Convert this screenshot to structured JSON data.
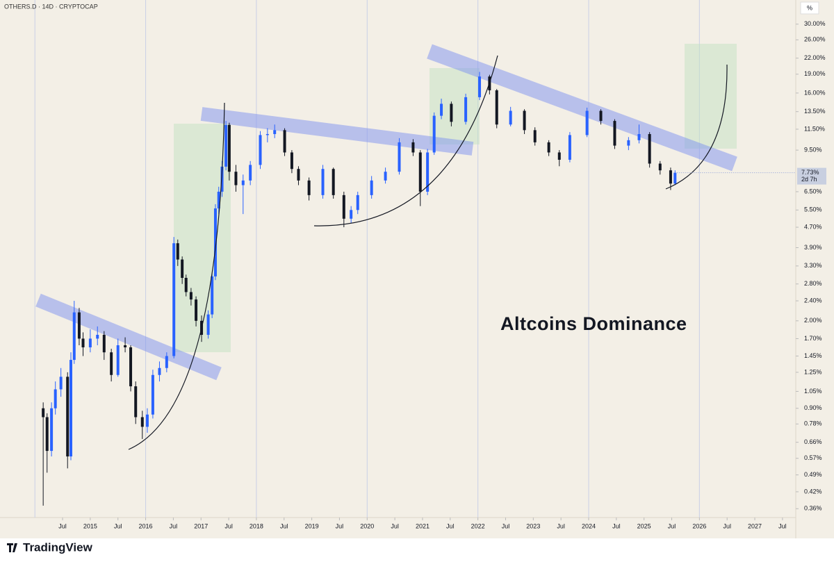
{
  "chart_data": {
    "type": "candlestick",
    "symbol": "OTHERS.D · 14D · CRYPTOCAP",
    "axis_unit": "%",
    "annotation": "Altcoins Dominance",
    "brand": "TradingView",
    "log_scale": true,
    "up_color": "#2962ff",
    "down_color": "#131722",
    "x": [
      2014.15,
      2014.22,
      2014.3,
      2014.37,
      2014.47,
      2014.59,
      2014.65,
      2014.71,
      2014.8,
      2014.87,
      2015.0,
      2015.13,
      2015.25,
      2015.38,
      2015.5,
      2015.63,
      2015.73,
      2015.82,
      2015.94,
      2016.03,
      2016.13,
      2016.25,
      2016.38,
      2016.51,
      2016.58,
      2016.66,
      2016.73,
      2016.82,
      2016.91,
      2017.01,
      2017.13,
      2017.2,
      2017.26,
      2017.32,
      2017.38,
      2017.45,
      2017.51,
      2017.63,
      2017.76,
      2017.89,
      2018.07,
      2018.2,
      2018.33,
      2018.51,
      2018.64,
      2018.76,
      2018.95,
      2019.2,
      2019.39,
      2019.58,
      2019.71,
      2019.83,
      2020.08,
      2020.33,
      2020.58,
      2020.83,
      2020.96,
      2021.09,
      2021.21,
      2021.34,
      2021.52,
      2021.78,
      2022.03,
      2022.21,
      2022.34,
      2022.59,
      2022.84,
      2023.03,
      2023.28,
      2023.47,
      2023.66,
      2023.97,
      2024.22,
      2024.47,
      2024.72,
      2024.91,
      2025.1,
      2025.29,
      2025.48,
      2025.56
    ],
    "open": [
      0.9,
      0.83,
      0.61,
      0.9,
      1.07,
      1.2,
      0.58,
      1.4,
      2.16,
      1.7,
      1.57,
      1.7,
      1.76,
      1.5,
      1.22,
      1.6,
      1.57,
      1.1,
      0.83,
      0.76,
      0.85,
      1.22,
      1.3,
      1.45,
      4.06,
      3.5,
      2.96,
      2.6,
      2.43,
      2.0,
      1.76,
      2.12,
      3.0,
      5.58,
      6.5,
      8.17,
      11.96,
      7.8,
      6.9,
      7.2,
      8.3,
      10.9,
      11.0,
      11.4,
      9.3,
      8.0,
      7.2,
      6.3,
      8.0,
      6.3,
      5.08,
      5.5,
      6.3,
      7.2,
      7.8,
      10.2,
      9.3,
      6.5,
      9.3,
      13.0,
      14.5,
      12.3,
      15.4,
      18.6,
      16.4,
      12.0,
      13.6,
      11.4,
      10.2,
      9.3,
      8.7,
      10.9,
      13.6,
      12.4,
      9.9,
      10.4,
      11.0,
      8.4,
      7.9,
      7.0
    ],
    "high": [
      0.95,
      0.86,
      0.95,
      1.15,
      1.3,
      1.25,
      1.5,
      2.4,
      2.25,
      1.8,
      1.85,
      1.9,
      1.82,
      1.55,
      1.7,
      1.72,
      1.6,
      1.15,
      0.88,
      0.9,
      1.28,
      1.38,
      1.5,
      4.3,
      4.2,
      3.6,
      3.05,
      2.7,
      2.5,
      2.1,
      2.2,
      3.1,
      5.8,
      6.8,
      8.6,
      12.4,
      12.2,
      8.3,
      7.6,
      8.6,
      11.3,
      11.6,
      12.0,
      11.6,
      9.5,
      8.2,
      7.4,
      8.3,
      8.1,
      6.5,
      5.7,
      6.5,
      7.5,
      8.1,
      10.6,
      10.5,
      9.5,
      9.6,
      13.4,
      15.2,
      14.8,
      15.9,
      19.4,
      18.9,
      16.6,
      14.1,
      13.8,
      11.7,
      10.4,
      9.5,
      11.2,
      14.0,
      13.8,
      12.6,
      10.7,
      12.0,
      11.2,
      8.6,
      8.1,
      7.9
    ],
    "low": [
      0.37,
      0.5,
      0.58,
      0.85,
      1.0,
      0.52,
      0.56,
      1.35,
      1.6,
      1.45,
      1.5,
      1.6,
      1.4,
      1.15,
      1.2,
      1.5,
      1.05,
      0.78,
      0.68,
      0.72,
      0.82,
      1.15,
      1.25,
      1.42,
      3.3,
      2.8,
      2.5,
      2.3,
      1.9,
      1.65,
      1.7,
      2.05,
      2.9,
      5.3,
      6.2,
      7.9,
      7.2,
      6.5,
      5.3,
      6.9,
      8.0,
      10.2,
      10.6,
      9.0,
      7.7,
      6.9,
      6.0,
      6.1,
      6.1,
      4.7,
      4.9,
      5.3,
      6.1,
      7.0,
      7.6,
      9.0,
      5.7,
      6.3,
      9.1,
      12.6,
      11.8,
      12.0,
      15.0,
      15.8,
      11.6,
      11.8,
      11.0,
      9.9,
      9.0,
      8.2,
      8.5,
      10.7,
      12.0,
      9.6,
      9.5,
      10.1,
      8.1,
      7.6,
      6.6,
      6.9
    ],
    "close": [
      0.83,
      0.61,
      0.9,
      1.07,
      1.2,
      0.58,
      1.4,
      2.16,
      1.7,
      1.57,
      1.7,
      1.76,
      1.5,
      1.22,
      1.6,
      1.57,
      1.1,
      0.83,
      0.76,
      0.85,
      1.22,
      1.3,
      1.45,
      4.06,
      3.5,
      2.96,
      2.6,
      2.43,
      2.0,
      1.76,
      2.12,
      3.0,
      5.58,
      6.5,
      8.17,
      11.96,
      7.8,
      6.9,
      7.2,
      8.3,
      10.9,
      11.0,
      11.4,
      9.3,
      8.0,
      7.2,
      6.3,
      8.0,
      6.3,
      5.08,
      5.5,
      6.3,
      7.2,
      7.8,
      10.2,
      9.3,
      6.5,
      9.3,
      13.0,
      14.5,
      12.3,
      15.4,
      18.6,
      16.4,
      12.0,
      13.6,
      11.4,
      10.2,
      9.3,
      8.7,
      10.9,
      13.6,
      12.4,
      9.9,
      10.4,
      11.0,
      8.4,
      7.9,
      7.0,
      7.73
    ],
    "last_price": {
      "value": 7.73,
      "label": "7.73%"
    },
    "countdown": "2d 7h",
    "xlim": [
      2013.37,
      2027.74
    ],
    "ylim": [
      0.332,
      37.4
    ],
    "x_grid": [
      2014,
      2016,
      2018,
      2020,
      2022,
      2024,
      2026
    ],
    "xticks": [
      {
        "value": 2014.5,
        "label": "Jul"
      },
      2015,
      {
        "value": 2015.5,
        "label": "Jul"
      },
      2016,
      {
        "value": 2016.5,
        "label": "Jul"
      },
      2017,
      {
        "value": 2017.5,
        "label": "Jul"
      },
      2018,
      {
        "value": 2018.5,
        "label": "Jul"
      },
      2019,
      {
        "value": 2019.5,
        "label": "Jul"
      },
      2020,
      {
        "value": 2020.5,
        "label": "Jul"
      },
      2021,
      {
        "value": 2021.5,
        "label": "Jul"
      },
      2022,
      {
        "value": 2022.5,
        "label": "Jul"
      },
      2023,
      {
        "value": 2023.5,
        "label": "Jul"
      },
      2024,
      {
        "value": 2024.5,
        "label": "Jul"
      },
      2025,
      {
        "value": 2025.5,
        "label": "Jul"
      },
      2026,
      {
        "value": 2026.5,
        "label": "Jul"
      },
      2027,
      {
        "value": 2027.5,
        "label": "Jul"
      }
    ],
    "yticks": [
      {
        "value": 30,
        "label": "30.00%"
      },
      {
        "value": 26,
        "label": "26.00%"
      },
      {
        "value": 22,
        "label": "22.00%"
      },
      {
        "value": 19,
        "label": "19.00%"
      },
      {
        "value": 16,
        "label": "16.00%"
      },
      {
        "value": 13.5,
        "label": "13.50%"
      },
      {
        "value": 11.5,
        "label": "11.50%"
      },
      {
        "value": 9.5,
        "label": "9.50%"
      },
      {
        "value": 6.5,
        "label": "6.50%"
      },
      {
        "value": 5.5,
        "label": "5.50%"
      },
      {
        "value": 4.7,
        "label": "4.70%"
      },
      {
        "value": 3.9,
        "label": "3.90%"
      },
      {
        "value": 3.3,
        "label": "3.30%"
      },
      {
        "value": 2.8,
        "label": "2.80%"
      },
      {
        "value": 2.4,
        "label": "2.40%"
      },
      {
        "value": 2,
        "label": "2.00%"
      },
      {
        "value": 1.7,
        "label": "1.70%"
      },
      {
        "value": 1.45,
        "label": "1.45%"
      },
      {
        "value": 1.25,
        "label": "1.25%"
      },
      {
        "value": 1.05,
        "label": "1.05%"
      },
      {
        "value": 0.9,
        "label": "0.90%"
      },
      {
        "value": 0.78,
        "label": "0.78%"
      },
      {
        "value": 0.66,
        "label": "0.66%"
      },
      {
        "value": 0.57,
        "label": "0.57%"
      },
      {
        "value": 0.49,
        "label": "0.49%"
      },
      {
        "value": 0.42,
        "label": "0.42%"
      },
      {
        "value": 0.36,
        "label": "0.36%"
      }
    ]
  }
}
